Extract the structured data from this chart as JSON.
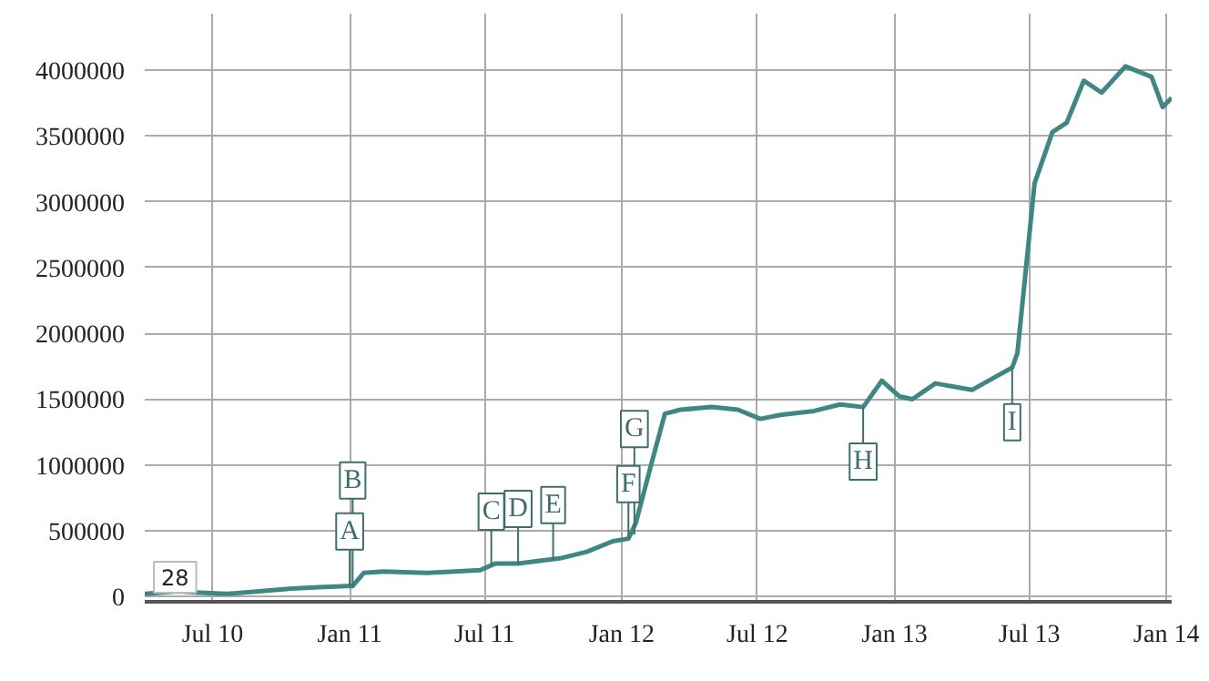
{
  "chart_data": {
    "type": "line",
    "x": [
      "2010-04-01",
      "2010-05-15",
      "2010-06-15",
      "2010-07-20",
      "2010-09-01",
      "2010-10-15",
      "2010-11-20",
      "2010-12-28",
      "2011-01-05",
      "2011-01-20",
      "2011-02-15",
      "2011-04-15",
      "2011-06-25",
      "2011-07-15",
      "2011-08-15",
      "2011-09-10",
      "2011-10-10",
      "2011-11-15",
      "2011-12-20",
      "2012-01-10",
      "2012-01-20",
      "2012-02-08",
      "2012-02-28",
      "2012-03-20",
      "2012-05-01",
      "2012-06-05",
      "2012-07-05",
      "2012-08-01",
      "2012-09-15",
      "2012-10-20",
      "2012-11-20",
      "2012-12-15",
      "2013-01-08",
      "2013-01-25",
      "2013-02-25",
      "2013-04-15",
      "2013-05-20",
      "2013-06-08",
      "2013-06-15",
      "2013-07-08",
      "2013-08-01",
      "2013-08-20",
      "2013-09-12",
      "2013-10-06",
      "2013-11-07",
      "2013-12-12",
      "2013-12-27",
      "2014-01-08"
    ],
    "series": [
      {
        "color": "#3f8784",
        "values": [
          20000,
          40000,
          30000,
          20000,
          40000,
          60000,
          70000,
          80000,
          80000,
          180000,
          190000,
          180000,
          200000,
          250000,
          250000,
          270000,
          290000,
          340000,
          420000,
          440000,
          560000,
          970000,
          1390000,
          1420000,
          1440000,
          1420000,
          1350000,
          1380000,
          1410000,
          1460000,
          1440000,
          1640000,
          1520000,
          1500000,
          1620000,
          1570000,
          1680000,
          1740000,
          1850000,
          3140000,
          3530000,
          3600000,
          3920000,
          3830000,
          4030000,
          3950000,
          3720000,
          3790000
        ]
      }
    ],
    "xlim": [
      "2010-04-01",
      "2014-01-08"
    ],
    "ylim": [
      -40000,
      4430000
    ],
    "xticks": [
      {
        "value": "2010-07-01",
        "label": "Jul 10"
      },
      {
        "value": "2011-01-01",
        "label": "Jan 11"
      },
      {
        "value": "2011-07-01",
        "label": "Jul 11"
      },
      {
        "value": "2012-01-01",
        "label": "Jan 12"
      },
      {
        "value": "2012-07-01",
        "label": "Jul 12"
      },
      {
        "value": "2013-01-01",
        "label": "Jan 13"
      },
      {
        "value": "2013-07-01",
        "label": "Jul 13"
      },
      {
        "value": "2014-01-01",
        "label": "Jan 14"
      }
    ],
    "yticks": [
      0,
      500000,
      1000000,
      1500000,
      2000000,
      2500000,
      3000000,
      3500000,
      4000000
    ],
    "grid": true,
    "annotations": [
      "28",
      {
        "text": "A",
        "x": "2011-01-01",
        "y": 80000
      },
      {
        "text": "B",
        "x": "2011-01-05",
        "y": 80000
      },
      {
        "text": "C",
        "x": "2011-07-10",
        "y": 230000
      },
      {
        "text": "D",
        "x": "2011-08-15",
        "y": 250000
      },
      {
        "text": "E",
        "x": "2011-10-01",
        "y": 280000
      },
      {
        "text": "F",
        "x": "2012-01-10",
        "y": 440000
      },
      {
        "text": "G",
        "x": "2012-01-18",
        "y": 470000
      },
      {
        "text": "H",
        "x": "2012-11-20",
        "y": 1440000
      },
      {
        "text": "I",
        "x": "2013-06-08",
        "y": 1740000
      }
    ]
  }
}
